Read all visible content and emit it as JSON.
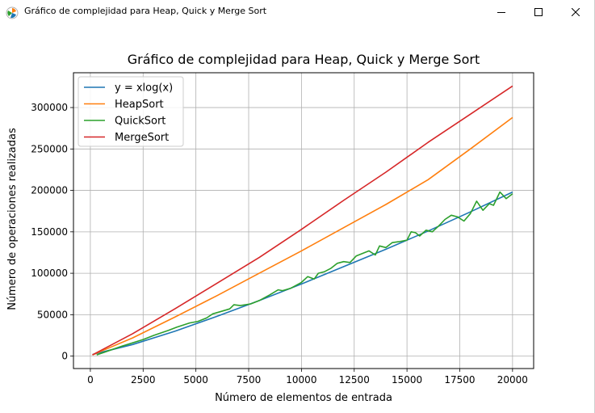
{
  "window": {
    "title": "Gráfico de complejidad para Heap, Quick y Merge Sort",
    "minimize_icon": "minimize-icon",
    "maximize_icon": "maximize-icon",
    "close_icon": "close-icon"
  },
  "chart_data": {
    "type": "line",
    "title": "Gráfico de complejidad para Heap, Quick y Merge Sort",
    "xlabel": "Número de elementos de entrada",
    "ylabel": "Número de operaciones realizadas",
    "xlim": [
      -800,
      21000
    ],
    "ylim": [
      -15000,
      342000
    ],
    "xticks": [
      0,
      2500,
      5000,
      7500,
      10000,
      12500,
      15000,
      17500,
      20000
    ],
    "yticks": [
      0,
      50000,
      100000,
      150000,
      200000,
      250000,
      300000
    ],
    "grid": true,
    "legend_position": "upper-left",
    "series": [
      {
        "name": "y = xlog(x)",
        "color": "#1f77b4",
        "x": [
          100,
          2000,
          4000,
          6000,
          8000,
          10000,
          12000,
          14000,
          16000,
          18000,
          20000
        ],
        "y": [
          2000,
          14000,
          30000,
          48000,
          67000,
          87000,
          108000,
          129000,
          151000,
          174000,
          198000
        ]
      },
      {
        "name": "HeapSort",
        "color": "#ff7f0e",
        "x": [
          100,
          2000,
          4000,
          6000,
          8000,
          10000,
          12000,
          14000,
          16000,
          18000,
          20000
        ],
        "y": [
          1500,
          22000,
          47000,
          73000,
          100000,
          127000,
          155000,
          183000,
          213000,
          250000,
          288000
        ]
      },
      {
        "name": "QuickSort",
        "color": "#2ca02c",
        "x": [
          300,
          1500,
          2500,
          3000,
          3700,
          4100,
          4700,
          5100,
          5500,
          5800,
          6200,
          6600,
          6800,
          7100,
          7600,
          8000,
          8500,
          8900,
          9100,
          9500,
          10000,
          10300,
          10600,
          10800,
          11100,
          11400,
          11700,
          12000,
          12300,
          12600,
          12900,
          13200,
          13500,
          13700,
          14000,
          14300,
          14600,
          14800,
          15000,
          15200,
          15400,
          15600,
          15900,
          16200,
          16500,
          16800,
          17100,
          17400,
          17700,
          18000,
          18300,
          18600,
          18900,
          19100,
          19400,
          19700,
          20000
        ],
        "y": [
          1500,
          12000,
          20000,
          25000,
          31000,
          35000,
          40000,
          42000,
          46000,
          51000,
          54000,
          57000,
          62000,
          61000,
          63000,
          67000,
          74000,
          80000,
          79000,
          82000,
          89000,
          96000,
          93000,
          100000,
          102000,
          106000,
          112000,
          114000,
          113000,
          121000,
          124000,
          127000,
          122000,
          133000,
          131000,
          137000,
          138000,
          139000,
          140000,
          150000,
          149000,
          145000,
          152000,
          150000,
          157000,
          165000,
          170000,
          168000,
          163000,
          172000,
          187000,
          176000,
          184000,
          182000,
          198000,
          190000,
          196000
        ]
      },
      {
        "name": "MergeSort",
        "color": "#d62728",
        "x": [
          100,
          2000,
          4000,
          6000,
          8000,
          10000,
          12000,
          14000,
          16000,
          18000,
          20000
        ],
        "y": [
          1500,
          27000,
          57000,
          88000,
          119000,
          153000,
          188000,
          222000,
          258000,
          292000,
          326000
        ]
      }
    ]
  }
}
